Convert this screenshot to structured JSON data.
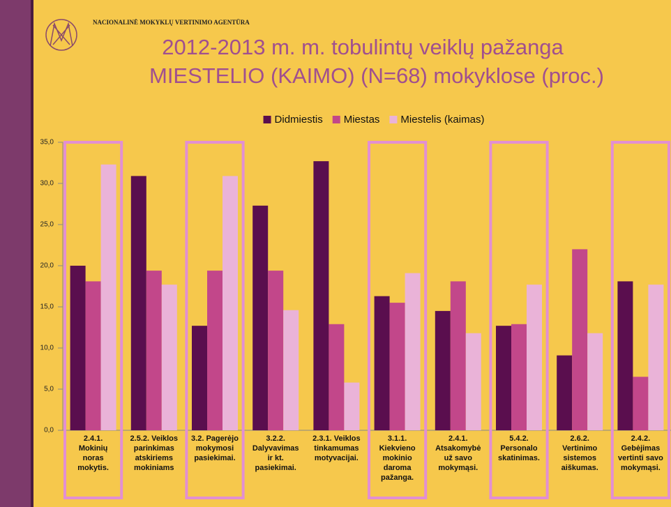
{
  "header": "NACIONALINĖ MOKYKLŲ VERTINIMO AGENTŪRA",
  "chart_data": {
    "type": "bar",
    "title": "2012-2013 m. m. tobulintų veiklų pažanga",
    "subtitle": "MIESTELIO (KAIMO) (N=68) mokyklose (proc.)",
    "categories": [
      "2.4.1. Mokinių noras mokytis.",
      "2.5.2. Veiklos parinkimas atskiriems mokiniams",
      "3.2. Pagerėjo mokymosi pasiekimai.",
      "3.2.2. Dalyvavimas ir kt. pasiekimai.",
      "2.3.1. Veiklos tinkamumas motyvacijai.",
      "3.1.1. Kiekvieno mokinio daroma pažanga.",
      "2.4.1. Atsakomybė už savo mokymąsi.",
      "5.4.2. Personalo skatinimas.",
      "2.6.2. Vertinimo sistemos aiškumas.",
      "2.4.2. Gebėjimas vertinti savo mokymąsi."
    ],
    "series": [
      {
        "name": "Didmiestis",
        "color": "#5a0e4e",
        "values": [
          20.0,
          30.9,
          12.7,
          27.3,
          32.7,
          16.3,
          14.5,
          12.7,
          9.1,
          18.1
        ]
      },
      {
        "name": "Miestas",
        "color": "#c2478a",
        "values": [
          18.1,
          19.4,
          19.4,
          19.4,
          12.9,
          15.5,
          18.1,
          12.9,
          22.0,
          6.5
        ]
      },
      {
        "name": "Miestelis (kaimas)",
        "color": "#eab3d8",
        "values": [
          32.3,
          17.7,
          30.9,
          14.6,
          5.8,
          19.1,
          11.8,
          17.7,
          11.8,
          17.7
        ]
      }
    ],
    "ylim": [
      0,
      35
    ],
    "yticks": [
      {
        "value": 0,
        "label": "0,0"
      },
      {
        "value": 5,
        "label": "5,0"
      },
      {
        "value": 10,
        "label": "10,0"
      },
      {
        "value": 15,
        "label": "15,0"
      },
      {
        "value": 20,
        "label": "20,0"
      },
      {
        "value": 25,
        "label": "25,0"
      },
      {
        "value": 30,
        "label": "30,0"
      },
      {
        "value": 35,
        "label": "35,0"
      }
    ],
    "highlight_categories": [
      0,
      2,
      5,
      7,
      9
    ],
    "highlight_color": "#e28fd2",
    "legend": "top",
    "grid": false
  }
}
